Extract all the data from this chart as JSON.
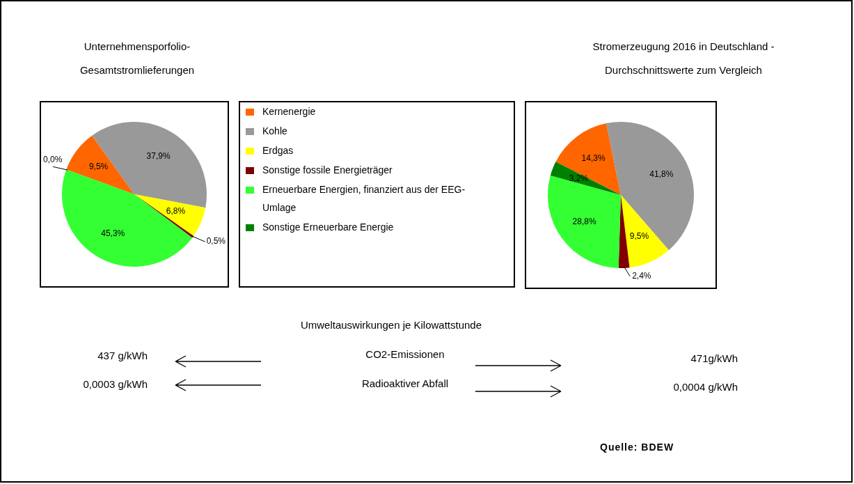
{
  "chart_data": [
    {
      "type": "pie",
      "title": "Unternehmensporfolio- Gesamtstromlieferungen",
      "categories": [
        "Kernenergie",
        "Kohle",
        "Erdgas",
        "Sonstige fossile Energieträger",
        "Erneuerbare Energien, finanziert aus der EEG-Umlage",
        "Sonstige Erneuerbare Energie"
      ],
      "values": [
        9.5,
        37.9,
        6.8,
        0.5,
        45.3,
        0.0
      ],
      "colors": [
        "#ff6600",
        "#999999",
        "#ffff00",
        "#800000",
        "#33ff33",
        "#008000"
      ],
      "value_labels": [
        "9,5%",
        "37,9%",
        "6,8%",
        "0,5%",
        "45,3%",
        "0,0%"
      ],
      "legend": "right"
    },
    {
      "type": "pie",
      "title": "Stromerzeugung 2016 in Deutschland - Durchschnittswerte zum Vergleich",
      "categories": [
        null,
        null,
        null,
        null,
        null,
        null
      ],
      "values": [
        14.3,
        41.8,
        9.5,
        2.4,
        28.8,
        3.2
      ],
      "colors": [
        "#ff6600",
        "#999999",
        "#ffff00",
        "#800000",
        "#33ff33",
        "#008000"
      ],
      "value_labels": [
        "14,3%",
        "41,8%",
        "9,5%",
        "2,4%",
        "28,8%",
        "3,2%"
      ]
    },
    {
      "type": "other",
      "title": "Umweltauswirkungen je Kilowattstunde",
      "annotations": [
        "CO2-Emissionen",
        "Radioaktiver Abfall",
        "437 g/kWh",
        "0,0003 g/kWh",
        "471g/kWh",
        "0,0004 g/kWh",
        "Quelle: BDEW"
      ]
    }
  ]
}
